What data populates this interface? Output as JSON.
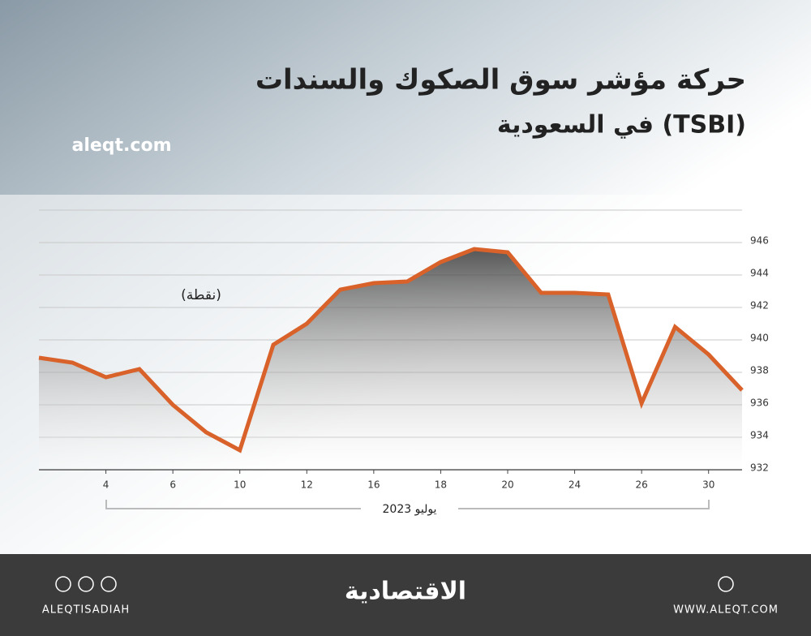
{
  "chart_data": {
    "type": "line",
    "title": "حركة مؤشر سوق الصكوك والسندات",
    "subtitle": "في السعودية (TSBI)",
    "watermark": "aleqt.com",
    "y_label": "(نقطة)",
    "x_label": "يوليو 2023",
    "categories": [
      null,
      null,
      "4",
      null,
      "6",
      null,
      "10",
      null,
      "12",
      null,
      "16",
      null,
      "18",
      null,
      "20",
      null,
      "24",
      null,
      "26",
      null,
      "30",
      null
    ],
    "values": [
      938.9,
      938.6,
      937.7,
      938.2,
      936,
      934.3,
      933.2,
      939.7,
      941,
      943.1,
      943.5,
      943.6,
      944.8,
      945.6,
      945.4,
      942.9,
      942.9,
      942.8,
      936.1,
      940.8,
      939.1,
      936.9
    ],
    "color": "#d9622b",
    "ylim": [
      932,
      948
    ],
    "yticks": [
      932,
      934,
      936,
      938,
      940,
      942,
      944,
      946
    ],
    "grid": true
  },
  "footer": {
    "handle": "ALEQTISADIAH",
    "brand": "الاقتصادية",
    "website": "WWW.ALEQT.COM"
  }
}
